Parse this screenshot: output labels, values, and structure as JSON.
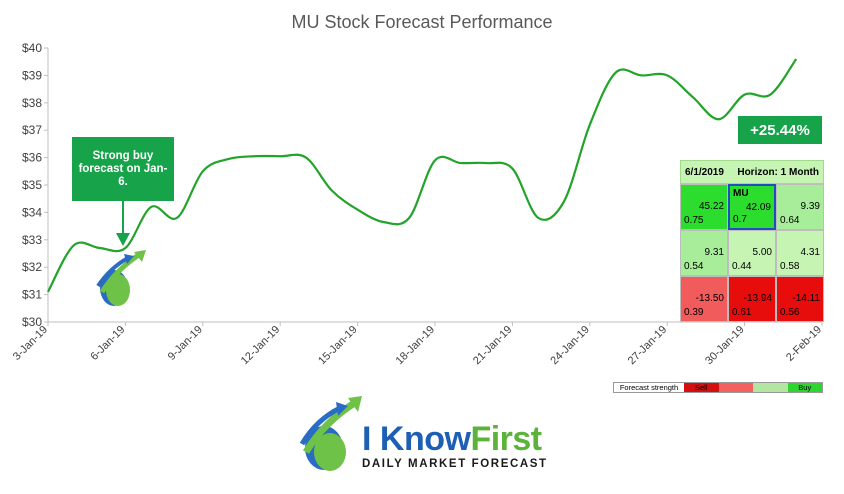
{
  "chart_data": {
    "type": "line",
    "title": "MU Stock Forecast Performance",
    "y_ticks": [
      "$40",
      "$39",
      "$38",
      "$37",
      "$36",
      "$35",
      "$34",
      "$33",
      "$32",
      "$31",
      "$30"
    ],
    "x_ticks": [
      "3-Jan-19",
      "6-Jan-19",
      "9-Jan-19",
      "12-Jan-19",
      "15-Jan-19",
      "18-Jan-19",
      "21-Jan-19",
      "24-Jan-19",
      "27-Jan-19",
      "30-Jan-19",
      "2-Feb-19"
    ],
    "ylim": [
      30,
      40
    ],
    "xlim": [
      "2019-01-03",
      "2019-02-02"
    ],
    "grid": false,
    "series": [
      {
        "color": "#22a32a",
        "x": [
          "2019-01-03",
          "2019-01-04",
          "2019-01-05",
          "2019-01-06",
          "2019-01-07",
          "2019-01-08",
          "2019-01-09",
          "2019-01-10",
          "2019-01-11",
          "2019-01-12",
          "2019-01-13",
          "2019-01-14",
          "2019-01-15",
          "2019-01-16",
          "2019-01-17",
          "2019-01-18",
          "2019-01-19",
          "2019-01-20",
          "2019-01-21",
          "2019-01-22",
          "2019-01-23",
          "2019-01-24",
          "2019-01-25",
          "2019-01-26",
          "2019-01-27",
          "2019-01-28",
          "2019-01-29",
          "2019-01-30",
          "2019-01-31",
          "2019-02-01"
        ],
        "values": [
          31.1,
          32.8,
          32.7,
          32.7,
          34.2,
          33.8,
          35.5,
          35.95,
          36.05,
          36.05,
          36.0,
          34.8,
          34.1,
          33.65,
          33.8,
          35.9,
          35.8,
          35.8,
          35.6,
          33.8,
          34.4,
          37.2,
          39.1,
          39.0,
          39.0,
          38.2,
          37.4,
          38.3,
          38.3,
          39.6
        ]
      }
    ],
    "annotations": [
      {
        "text": "Strong buy forecast on Jan-6.",
        "x": "2019-01-06",
        "y": 32.7
      },
      {
        "text": "+25.44%"
      }
    ]
  },
  "forecast_grid": {
    "date": "6/1/2019",
    "horizon": "Horizon: 1 Month",
    "cells": [
      {
        "value": "45.22",
        "signal": "0.75",
        "ticker": "",
        "color": "#2ddd2d"
      },
      {
        "value": "42.09",
        "signal": "0.7",
        "ticker": "MU",
        "color": "#2ddd2d"
      },
      {
        "value": "9.39",
        "signal": "0.64",
        "ticker": "",
        "color": "#a8ee9a"
      },
      {
        "value": "9.31",
        "signal": "0.54",
        "ticker": "",
        "color": "#a8ee9a"
      },
      {
        "value": "5.00",
        "signal": "0.44",
        "ticker": "",
        "color": "#c6f5b3"
      },
      {
        "value": "4.31",
        "signal": "0.58",
        "ticker": "",
        "color": "#c6f5b3"
      },
      {
        "value": "-13.50",
        "signal": "0.39",
        "ticker": "",
        "color": "#f15b5b"
      },
      {
        "value": "-13.94",
        "signal": "0.61",
        "ticker": "",
        "color": "#e80d0d"
      },
      {
        "value": "-14.11",
        "signal": "0.56",
        "ticker": "",
        "color": "#e80d0d"
      }
    ],
    "highlight_color": "#1f4fbf"
  },
  "legend": {
    "label": "Forecast strength",
    "items": [
      {
        "text": "Sell",
        "color": "#d40f0f"
      },
      {
        "text": "",
        "color": "#f26060"
      },
      {
        "text": "",
        "color": "#b3e6a0"
      },
      {
        "text": "Buy",
        "color": "#2dd62d"
      }
    ]
  },
  "brand": {
    "name_part1": "I Know",
    "name_part2": "First",
    "tagline": "DAILY MARKET FORECAST"
  }
}
